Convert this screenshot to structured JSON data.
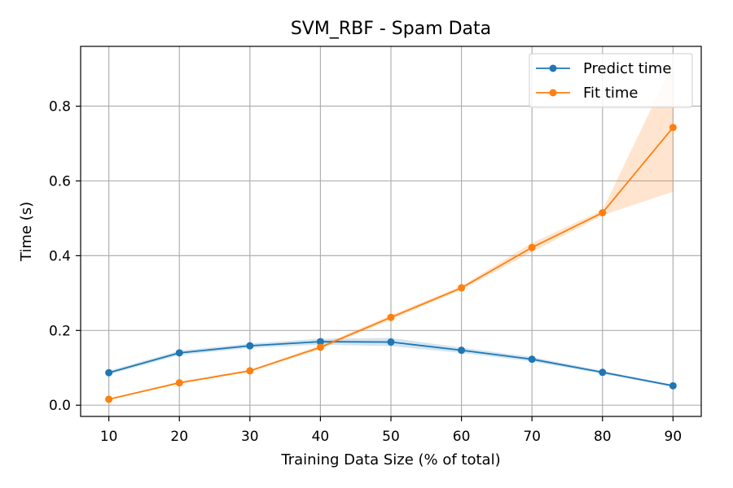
{
  "chart_data": {
    "type": "line",
    "title": "SVM_RBF - Spam Data",
    "xlabel": "Training Data Size (% of total)",
    "ylabel": "Time (s)",
    "x": [
      10,
      20,
      30,
      40,
      50,
      60,
      70,
      80,
      90
    ],
    "xlim": [
      6,
      94
    ],
    "ylim": [
      -0.03,
      0.96
    ],
    "xticks": [
      "10",
      "20",
      "30",
      "40",
      "50",
      "60",
      "70",
      "80",
      "90"
    ],
    "yticks": [
      "0.0",
      "0.2",
      "0.4",
      "0.6",
      "0.8"
    ],
    "grid": true,
    "legend_position": "top-right",
    "series": [
      {
        "name": "Predict time",
        "color": "#1f77b4",
        "values": [
          0.087,
          0.14,
          0.159,
          0.17,
          0.169,
          0.147,
          0.123,
          0.088,
          0.052
        ],
        "band_lower": [
          0.082,
          0.134,
          0.153,
          0.162,
          0.158,
          0.14,
          0.117,
          0.084,
          0.049
        ],
        "band_upper": [
          0.092,
          0.146,
          0.165,
          0.178,
          0.18,
          0.154,
          0.129,
          0.092,
          0.055
        ]
      },
      {
        "name": "Fit time",
        "color": "#ff7f0e",
        "values": [
          0.016,
          0.06,
          0.092,
          0.155,
          0.235,
          0.314,
          0.422,
          0.515,
          0.743
        ],
        "band_lower": [
          0.014,
          0.057,
          0.089,
          0.15,
          0.229,
          0.309,
          0.41,
          0.508,
          0.571
        ],
        "band_upper": [
          0.018,
          0.063,
          0.095,
          0.16,
          0.241,
          0.319,
          0.434,
          0.522,
          0.915
        ]
      }
    ]
  }
}
